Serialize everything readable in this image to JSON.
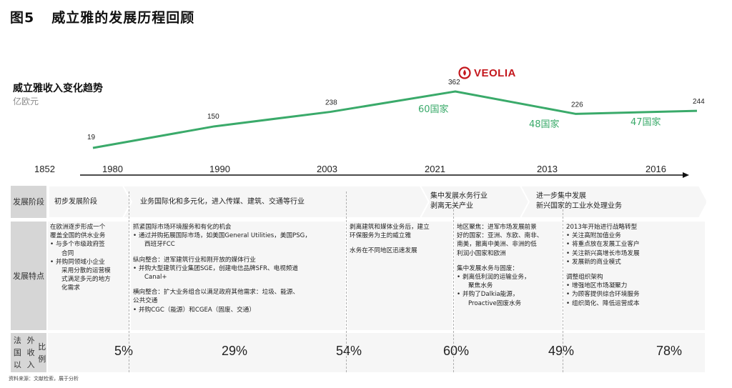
{
  "figure": {
    "number": "图5",
    "title": "威立雅的发展历程回顾"
  },
  "trend": {
    "title": "威立雅收入变化趋势",
    "unit": "亿欧元"
  },
  "logo": {
    "text": "VEOLIA",
    "color": "#c4171d"
  },
  "chart_data": {
    "type": "line",
    "series": [
      {
        "x": [
          "1980",
          "1990",
          "2003",
          "2021",
          "2013",
          "2016"
        ],
        "values": [
          19,
          150,
          238,
          362,
          226,
          244
        ]
      }
    ],
    "point_labels": [
      "19",
      "150",
      "238",
      "362",
      "226",
      "244"
    ],
    "timeline_years": [
      "1852",
      "1980",
      "1990",
      "2003",
      "2021",
      "2013",
      "2016"
    ],
    "annotations": [
      {
        "text": "60国家",
        "near": "362"
      },
      {
        "text": "48国家",
        "near": "226"
      },
      {
        "text": "47国家",
        "near": "244"
      }
    ],
    "line_color": "#3aaa6a",
    "annotation_color": "#3aaa6a"
  },
  "table": {
    "row_headers": {
      "stage": "发展\n阶段",
      "features": "发展\n特点",
      "ratio": "法国以\n外收入\n比例"
    },
    "stages": [
      {
        "lines": [
          "初步发展阶段"
        ]
      },
      {
        "lines": [
          "业务国际化和多元化，进入传媒、建筑、交通等行业"
        ]
      },
      {
        "lines": [
          "集中发展水务行业",
          "剥离无关产业"
        ]
      },
      {
        "lines": [
          "进一步集中发展",
          "新兴国家的工业水处理业务"
        ]
      }
    ],
    "features": [
      {
        "items": [
          {
            "t": "在欧洲逐步形成一个",
            "k": "line"
          },
          {
            "t": "覆盖全国的供水业务",
            "k": "line"
          },
          {
            "t": "与多个市级政府签",
            "k": "bullet"
          },
          {
            "t": "合同",
            "k": "sub"
          },
          {
            "t": "并购同领域小企业",
            "k": "bullet"
          },
          {
            "t": "采用分散的运营模",
            "k": "sub"
          },
          {
            "t": "式满足多元的地方",
            "k": "sub"
          },
          {
            "t": "化需求",
            "k": "sub"
          }
        ]
      },
      {
        "items": [
          {
            "t": "抓紧国际市场环境服务和有化的机会",
            "k": "line"
          },
          {
            "t": "通过并购拓展国际市场，如美国General Utilities，美国PSG，",
            "k": "bullet"
          },
          {
            "t": "西班牙FCC",
            "k": "sub"
          },
          {
            "t": "",
            "k": "gap"
          },
          {
            "t": "纵向整合：进军建筑行业和刚开放的媒体行业",
            "k": "line"
          },
          {
            "t": "并购大型建筑行业集团SGE，创建电信品牌SFR、电视频道",
            "k": "bullet"
          },
          {
            "t": "Canal+",
            "k": "sub"
          },
          {
            "t": "",
            "k": "gap"
          },
          {
            "t": "横向整合：扩大业务组合以满足政府其他需求：垃圾、能源、",
            "k": "line"
          },
          {
            "t": "公共交通",
            "k": "line"
          },
          {
            "t": "并购CGC（能源）和CGEA（固废、交通）",
            "k": "bullet"
          }
        ]
      },
      {
        "items": [
          {
            "t": "剥离建筑和媒体业务后，建立",
            "k": "line"
          },
          {
            "t": "环保服务为主的威立雅",
            "k": "line"
          },
          {
            "t": "",
            "k": "gap"
          },
          {
            "t": "水务在不同地区迅速发展",
            "k": "line"
          }
        ]
      },
      {
        "items": [
          {
            "t": "地区聚焦：进军市场发展前景",
            "k": "line"
          },
          {
            "t": "好的国家：亚洲、东欧、南非、",
            "k": "line"
          },
          {
            "t": "南美，撤离中美洲、非洲的低",
            "k": "line"
          },
          {
            "t": "利润小国家和欧洲",
            "k": "line"
          },
          {
            "t": "",
            "k": "gap"
          },
          {
            "t": "集中发展水务与固废：",
            "k": "line"
          },
          {
            "t": "剥离低利润的运输业务，",
            "k": "bullet"
          },
          {
            "t": "聚焦水务",
            "k": "sub"
          },
          {
            "t": "并购了Dalkia能源，",
            "k": "bullet"
          },
          {
            "t": "Proactive固废水务",
            "k": "sub"
          }
        ]
      },
      {
        "items": [
          {
            "t": "2013年开始进行战略转型",
            "k": "line"
          },
          {
            "t": "关注高附加值业务",
            "k": "bullet"
          },
          {
            "t": "将重点放在发展工业客户",
            "k": "bullet"
          },
          {
            "t": "关注新兴高增长市场发展",
            "k": "bullet"
          },
          {
            "t": "发展新的商业模式",
            "k": "bullet"
          },
          {
            "t": "",
            "k": "gap"
          },
          {
            "t": "调整组织架构",
            "k": "line"
          },
          {
            "t": "增强地区市场凝聚力",
            "k": "bullet"
          },
          {
            "t": "为顾客提供综合环境服务",
            "k": "bullet"
          },
          {
            "t": "组织简化、降低运营成本",
            "k": "bullet"
          }
        ]
      }
    ],
    "ratios": [
      "5%",
      "29%",
      "54%",
      "60%",
      "49%",
      "78%"
    ]
  },
  "footer": "资料来源：文献检索，展于分析"
}
